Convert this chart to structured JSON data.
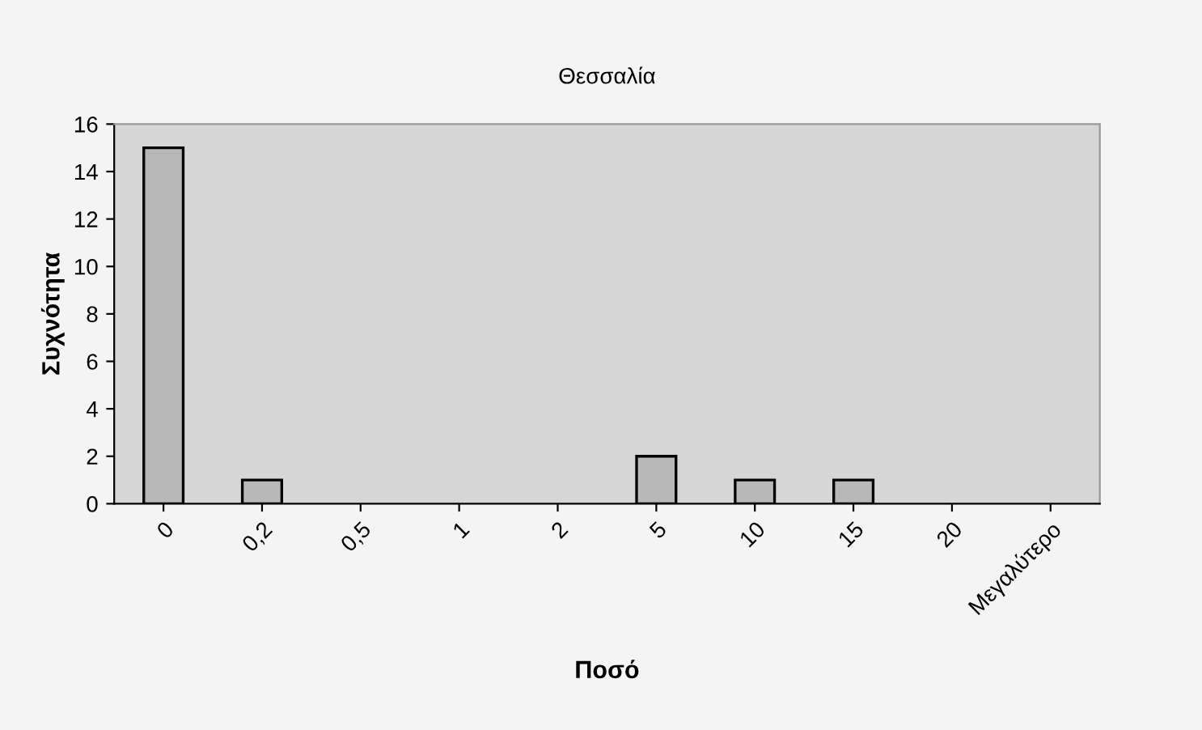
{
  "chart_data": {
    "type": "bar",
    "title": "Θεσσαλία",
    "xlabel": "Ποσό",
    "ylabel": "Συχνότητα",
    "categories": [
      "0",
      "0,2",
      "0,5",
      "1",
      "2",
      "5",
      "10",
      "15",
      "20",
      "Μεγαλύτερο"
    ],
    "values": [
      15,
      1,
      0,
      0,
      0,
      2,
      1,
      1,
      0,
      0
    ],
    "color": "#b8b8b8",
    "ylim": [
      0,
      16
    ],
    "yticks": [
      0,
      2,
      4,
      6,
      8,
      10,
      12,
      14,
      16
    ],
    "grid": false
  }
}
